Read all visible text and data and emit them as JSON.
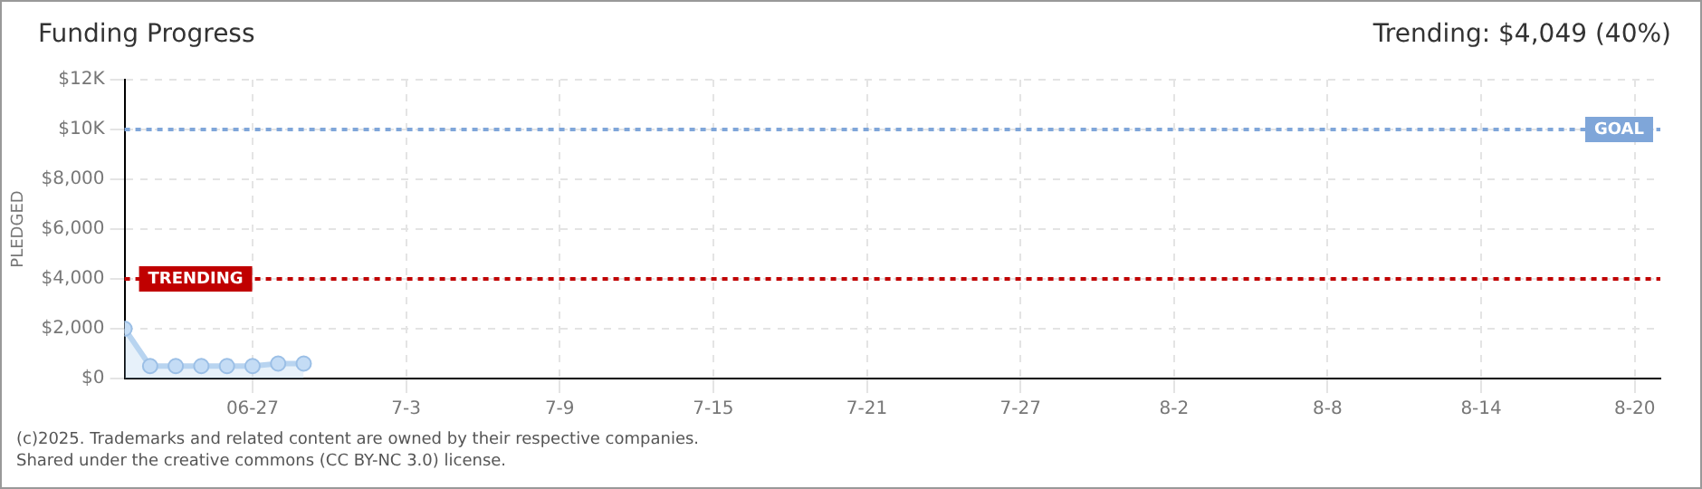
{
  "chart_data": {
    "type": "area",
    "title": "Funding Progress",
    "subtitle": "Trending: $4,049 (40%)",
    "ylabel": "PLEDGED",
    "x": [
      "2025-06-22",
      "2025-06-23",
      "2025-06-24",
      "2025-06-25",
      "2025-06-26",
      "2025-06-27",
      "2025-06-28",
      "2025-06-29"
    ],
    "series": [
      {
        "color": "#b8d4f0",
        "values": [
          2000,
          500,
          500,
          500,
          500,
          500,
          600,
          600
        ]
      }
    ],
    "xlim": [
      "2025-06-22",
      "2025-08-21"
    ],
    "xticks": [
      {
        "value": "2025-06-27",
        "label": "06-27"
      },
      {
        "value": "2025-07-03",
        "label": "7-3"
      },
      {
        "value": "2025-07-09",
        "label": "7-9"
      },
      {
        "value": "2025-07-15",
        "label": "7-15"
      },
      {
        "value": "2025-07-21",
        "label": "7-21"
      },
      {
        "value": "2025-07-27",
        "label": "7-27"
      },
      {
        "value": "2025-08-02",
        "label": "8-2"
      },
      {
        "value": "2025-08-08",
        "label": "8-8"
      },
      {
        "value": "2025-08-14",
        "label": "8-14"
      },
      {
        "value": "2025-08-20",
        "label": "8-20"
      }
    ],
    "ylim": [
      0,
      12000
    ],
    "yticks": [
      {
        "value": 0,
        "label": "$0"
      },
      {
        "value": 2000,
        "label": "$2,000"
      },
      {
        "value": 4000,
        "label": "$4,000"
      },
      {
        "value": 6000,
        "label": "$6,000"
      },
      {
        "value": 8000,
        "label": "$8,000"
      },
      {
        "value": 10000,
        "label": "$10K"
      },
      {
        "value": 12000,
        "label": "$12K"
      }
    ],
    "ref_lines": [
      {
        "axis": "y",
        "value": 10000,
        "label": "GOAL",
        "color": "#7fa6d9",
        "line_style": "dotted"
      },
      {
        "axis": "y",
        "value": 4000,
        "label": "TRENDING",
        "color": "#c00000",
        "line_style": "dotted"
      }
    ],
    "grid": true,
    "marker": "circle",
    "legend": false,
    "annotations": [
      "(c)2025. Trademarks and related content are owned by their respective companies.",
      "Shared under the creative commons (CC BY-NC 3.0) license."
    ]
  }
}
